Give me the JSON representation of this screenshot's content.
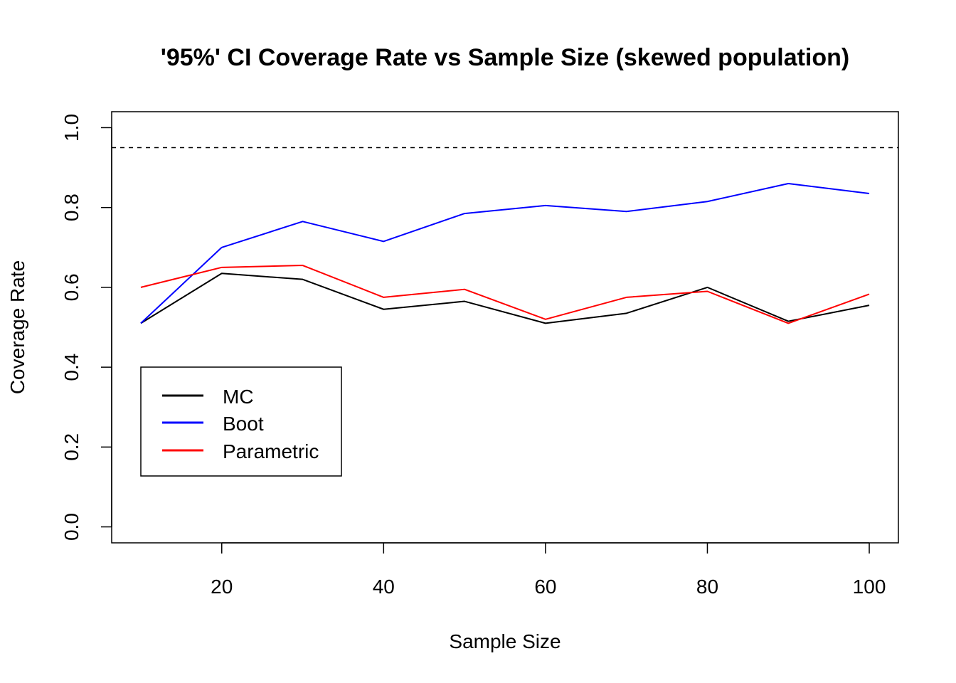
{
  "chart_data": {
    "type": "line",
    "title": "'95%' CI Coverage Rate vs Sample Size (skewed population)",
    "xlabel": "Sample Size",
    "ylabel": "Coverage Rate",
    "x": [
      10,
      20,
      30,
      40,
      50,
      60,
      70,
      80,
      90,
      100
    ],
    "xlim": [
      6.4,
      103.6
    ],
    "ylim": [
      -0.04,
      1.04
    ],
    "xticks": [
      20,
      40,
      60,
      80,
      100
    ],
    "yticks": [
      0.0,
      0.2,
      0.4,
      0.6,
      0.8,
      1.0
    ],
    "xtick_labels": [
      "20",
      "40",
      "60",
      "80",
      "100"
    ],
    "ytick_labels": [
      "0.0",
      "0.2",
      "0.4",
      "0.6",
      "0.8",
      "1.0"
    ],
    "reference_line": {
      "y": 0.95,
      "style": "dashed",
      "color": "#000000"
    },
    "series": [
      {
        "name": "MC",
        "color": "#000000",
        "values": [
          0.51,
          0.635,
          0.62,
          0.545,
          0.565,
          0.51,
          0.535,
          0.6,
          0.515,
          0.555
        ]
      },
      {
        "name": "Boot",
        "color": "#0000ff",
        "values": [
          0.51,
          0.7,
          0.765,
          0.715,
          0.785,
          0.805,
          0.79,
          0.815,
          0.86,
          0.835
        ]
      },
      {
        "name": "Parametric",
        "color": "#ff0000",
        "values": [
          0.6,
          0.65,
          0.655,
          0.575,
          0.595,
          0.52,
          0.575,
          0.59,
          0.51,
          0.583
        ]
      }
    ],
    "legend": {
      "placement": "bottom-left"
    },
    "grid": false
  }
}
